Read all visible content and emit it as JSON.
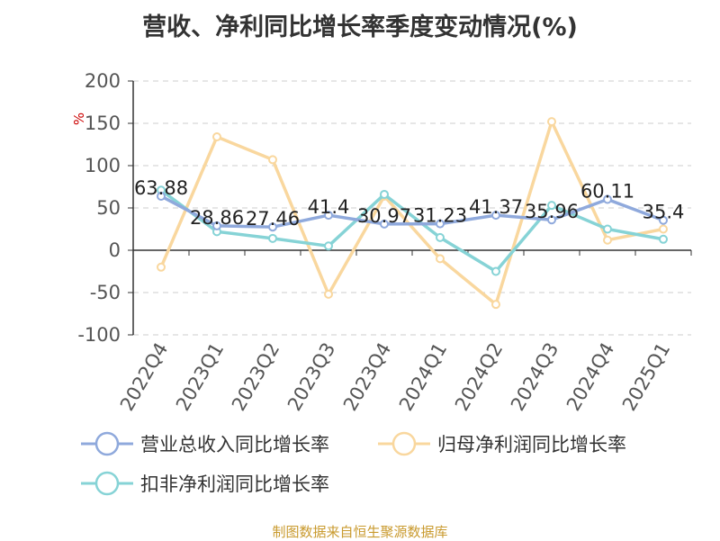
{
  "title": "营收、净利同比增长率季度变动情况(%)",
  "source": "制图数据来自恒生聚源数据库",
  "chart_data": {
    "type": "line",
    "title": "营收、净利同比增长率季度变动情况(%)",
    "ylabel": "%",
    "ylim": [
      -100,
      200
    ],
    "yticks": [
      -100,
      -50,
      0,
      50,
      100,
      150,
      200
    ],
    "grid": true,
    "legend_position": "bottom",
    "categories": [
      "2022Q4",
      "2023Q1",
      "2023Q2",
      "2023Q3",
      "2023Q4",
      "2024Q1",
      "2024Q2",
      "2024Q3",
      "2024Q4",
      "2025Q1"
    ],
    "series": [
      {
        "name": "营业总收入同比增长率",
        "color": "#8fa9dc",
        "values": [
          63.88,
          28.86,
          27.46,
          41.4,
          30.97,
          31.23,
          41.37,
          35.96,
          60.11,
          35.4
        ],
        "labels": [
          "63.88",
          "28.86",
          "27.46",
          "41.4",
          "30.97",
          "31.23",
          "41.37",
          "35.96",
          "60.11",
          "35.4"
        ]
      },
      {
        "name": "归母净利润同比增长率",
        "color": "#f9d79e",
        "values": [
          -20,
          134,
          107,
          -52,
          64,
          -10,
          -64,
          152,
          12,
          25
        ]
      },
      {
        "name": "扣非净利润同比增长率",
        "color": "#86d3d6",
        "values": [
          71,
          22,
          14,
          5,
          66,
          15,
          -25,
          53,
          25,
          13
        ]
      }
    ]
  }
}
